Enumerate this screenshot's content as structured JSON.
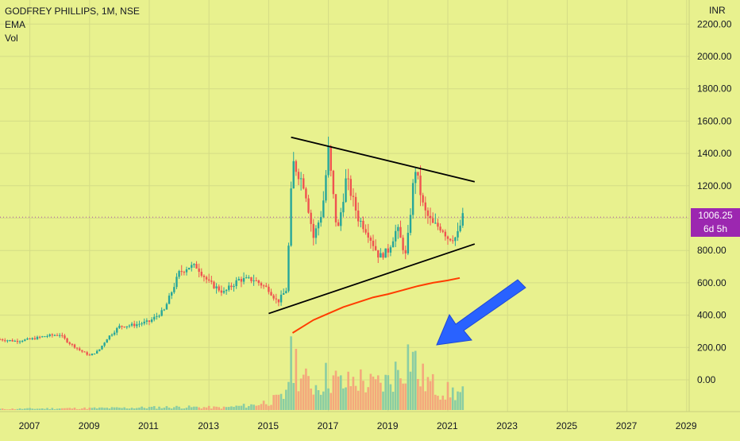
{
  "legend": {
    "symbol": "GODFREY PHILLIPS, 1M, NSE",
    "indicator1": "EMA",
    "indicator2": "Vol"
  },
  "currency": "INR",
  "last_price": {
    "value": "1006.25",
    "countdown": "6d 5h"
  },
  "colors": {
    "background": "#e8f18e",
    "up": "#26a69a",
    "down": "#ef5350",
    "ema": "#ff3d00",
    "trendline": "#000000",
    "arrow": "#2962ff",
    "price_tag": "#9c27b0"
  },
  "chart_data": {
    "type": "candlestick",
    "title": "GODFREY PHILLIPS, 1M, NSE",
    "y_unit": "INR",
    "y_ticks": [
      0,
      200,
      400,
      600,
      800,
      1000,
      1200,
      1400,
      1600,
      1800,
      2000,
      2200
    ],
    "y_tick_labels": [
      "0.00",
      "200.00",
      "400.00",
      "600.00",
      "800.00",
      "1000.00",
      "1200.00",
      "1400.00",
      "1600.00",
      "1800.00",
      "2000.00",
      "2200.00"
    ],
    "x_tick_labels": [
      "2007",
      "2009",
      "2011",
      "2013",
      "2015",
      "2017",
      "2019",
      "2021",
      "2023",
      "2025",
      "2027",
      "2029"
    ],
    "x_tick_years": [
      2007,
      2009,
      2011,
      2013,
      2015,
      2017,
      2019,
      2021,
      2023,
      2025,
      2027,
      2029
    ],
    "price_path": [
      [
        2006.0,
        250
      ],
      [
        2006.5,
        240
      ],
      [
        2007.0,
        250
      ],
      [
        2007.5,
        270
      ],
      [
        2008.0,
        280
      ],
      [
        2008.3,
        230
      ],
      [
        2008.7,
        180
      ],
      [
        2009.0,
        150
      ],
      [
        2009.3,
        180
      ],
      [
        2009.6,
        260
      ],
      [
        2010.0,
        330
      ],
      [
        2010.5,
        340
      ],
      [
        2011.0,
        360
      ],
      [
        2011.5,
        430
      ],
      [
        2012.0,
        660
      ],
      [
        2012.3,
        700
      ],
      [
        2012.6,
        700
      ],
      [
        2013.0,
        600
      ],
      [
        2013.5,
        540
      ],
      [
        2014.0,
        620
      ],
      [
        2014.5,
        620
      ],
      [
        2015.0,
        560
      ],
      [
        2015.3,
        480
      ],
      [
        2015.6,
        560
      ],
      [
        2015.8,
        1350
      ],
      [
        2016.2,
        1200
      ],
      [
        2016.5,
        880
      ],
      [
        2016.8,
        1050
      ],
      [
        2017.0,
        1420
      ],
      [
        2017.3,
        900
      ],
      [
        2017.6,
        1250
      ],
      [
        2018.0,
        1000
      ],
      [
        2018.3,
        920
      ],
      [
        2018.7,
        760
      ],
      [
        2019.0,
        800
      ],
      [
        2019.3,
        940
      ],
      [
        2019.6,
        760
      ],
      [
        2019.9,
        1320
      ],
      [
        2020.2,
        1050
      ],
      [
        2020.5,
        960
      ],
      [
        2020.8,
        940
      ],
      [
        2021.0,
        880
      ],
      [
        2021.3,
        880
      ],
      [
        2021.5,
        1006.25
      ]
    ],
    "ema_points": [
      [
        2015.8,
        290
      ],
      [
        2016.5,
        370
      ],
      [
        2017.0,
        410
      ],
      [
        2017.5,
        450
      ],
      [
        2018.0,
        480
      ],
      [
        2018.5,
        510
      ],
      [
        2019.0,
        530
      ],
      [
        2019.5,
        555
      ],
      [
        2020.0,
        580
      ],
      [
        2020.5,
        600
      ],
      [
        2021.0,
        615
      ],
      [
        2021.4,
        630
      ]
    ],
    "trendlines": [
      {
        "name": "upper",
        "from": [
          2015.75,
          1500
        ],
        "to": [
          2021.9,
          1225
        ]
      },
      {
        "name": "lower",
        "from": [
          2015.0,
          410
        ],
        "to": [
          2021.9,
          840
        ]
      }
    ],
    "volume_profile": [
      [
        2006.0,
        5
      ],
      [
        2008.0,
        8
      ],
      [
        2010.0,
        10
      ],
      [
        2012.0,
        15
      ],
      [
        2013.5,
        12
      ],
      [
        2014.5,
        25
      ],
      [
        2015.5,
        60
      ],
      [
        2015.8,
        270
      ],
      [
        2016.2,
        140
      ],
      [
        2016.6,
        120
      ],
      [
        2017.0,
        170
      ],
      [
        2017.5,
        120
      ],
      [
        2018.0,
        150
      ],
      [
        2018.5,
        120
      ],
      [
        2019.0,
        140
      ],
      [
        2019.5,
        230
      ],
      [
        2019.8,
        300
      ],
      [
        2020.0,
        170
      ],
      [
        2020.5,
        120
      ],
      [
        2021.0,
        90
      ],
      [
        2021.5,
        80
      ]
    ],
    "last_value": 1006.25
  }
}
